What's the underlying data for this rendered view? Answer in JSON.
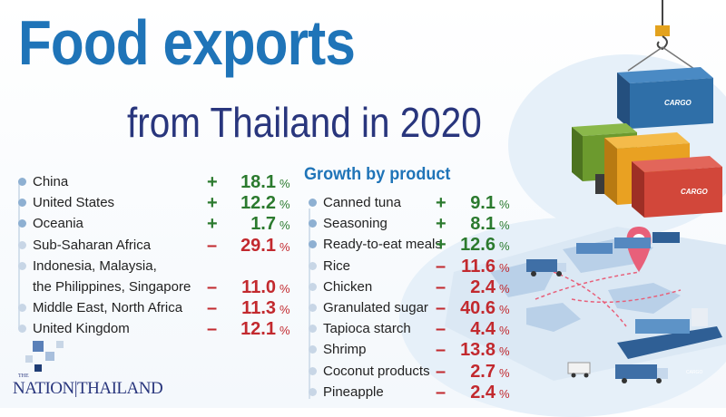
{
  "title": "Food exports",
  "subtitle": "from Thailand in 2020",
  "logo": {
    "small": "THE",
    "text": "NATION|THAILAND"
  },
  "chart_data": [
    {
      "type": "table",
      "title": "",
      "unit": "%",
      "rows": [
        {
          "label": "China",
          "sign": "+",
          "value": "18.1",
          "bullet": "filled"
        },
        {
          "label": "United States",
          "sign": "+",
          "value": "12.2",
          "bullet": "filled"
        },
        {
          "label": "Oceania",
          "sign": "+",
          "value": "1.7",
          "bullet": "filled"
        },
        {
          "label": "Sub-Saharan Africa",
          "sign": "-",
          "value": "29.1",
          "bullet": "open"
        },
        {
          "label": "Indonesia, Malaysia,",
          "sign": "",
          "value": "",
          "bullet": "open"
        },
        {
          "label": "the Philippines, Singapore",
          "sign": "-",
          "value": "11.0",
          "bullet": "none"
        },
        {
          "label": "Middle East, North Africa",
          "sign": "-",
          "value": "11.3",
          "bullet": "open"
        },
        {
          "label": "United Kingdom",
          "sign": "-",
          "value": "12.1",
          "bullet": "open"
        }
      ]
    },
    {
      "type": "table",
      "title": "Growth by product",
      "unit": "%",
      "rows": [
        {
          "label": "Canned tuna",
          "sign": "+",
          "value": "9.1",
          "bullet": "filled"
        },
        {
          "label": "Seasoning",
          "sign": "+",
          "value": "8.1",
          "bullet": "filled"
        },
        {
          "label": "Ready-to-eat meals",
          "sign": "+",
          "value": "12.6",
          "bullet": "filled"
        },
        {
          "label": "Rice",
          "sign": "-",
          "value": "11.6",
          "bullet": "open"
        },
        {
          "label": "Chicken",
          "sign": "-",
          "value": "2.4",
          "bullet": "open"
        },
        {
          "label": "Granulated sugar",
          "sign": "-",
          "value": "40.6",
          "bullet": "open"
        },
        {
          "label": "Tapioca starch",
          "sign": "-",
          "value": "4.4",
          "bullet": "open"
        },
        {
          "label": "Shrimp",
          "sign": "-",
          "value": "13.8",
          "bullet": "open"
        },
        {
          "label": "Coconut products",
          "sign": "-",
          "value": "2.7",
          "bullet": "open"
        },
        {
          "label": "Pineapple",
          "sign": "-",
          "value": "2.4",
          "bullet": "open"
        }
      ]
    }
  ],
  "illustration": {
    "container_text": [
      "CARGO",
      "CARGO",
      "CARGO"
    ],
    "colors": {
      "blue_container": "#2f6fa8",
      "green_container": "#6c9a2e",
      "orange_container": "#e9a122",
      "red_container": "#d2473a",
      "pin": "#e8607a"
    }
  }
}
